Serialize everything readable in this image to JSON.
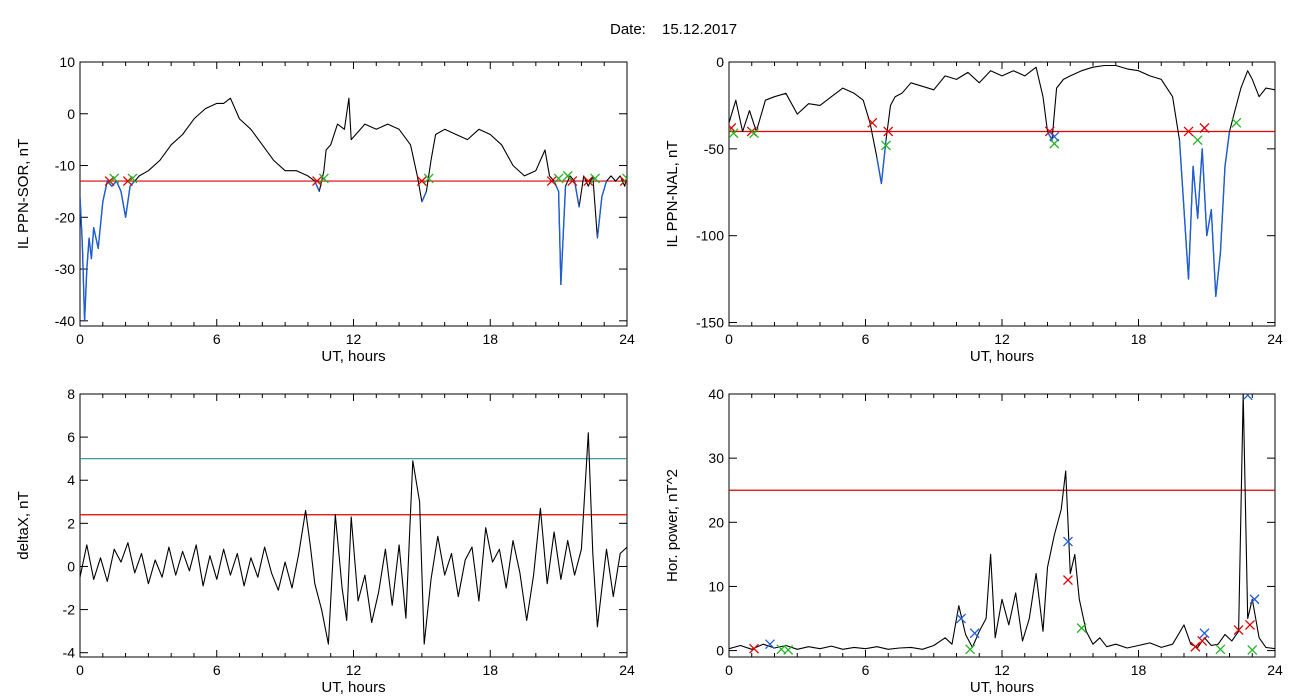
{
  "header": {
    "date_label": "Date:",
    "date_value": "15.12.2017"
  },
  "colors": {
    "series": "#000000",
    "segment": "#1f5fd6",
    "threshold": "#e00000",
    "threshold2": "#20909a",
    "marker_red": "#e00000",
    "marker_green": "#22b522",
    "marker_blue": "#1f5fd6"
  },
  "chart_data": [
    {
      "id": "p1",
      "type": "line",
      "xlabel": "UT, hours",
      "ylabel": "IL PPN-SOR, nT",
      "xlim": [
        0,
        24
      ],
      "ylim": [
        -41,
        10
      ],
      "xticks": [
        0,
        6,
        12,
        18,
        24
      ],
      "yticks": [
        10,
        0,
        -10,
        -20,
        -30,
        -40
      ],
      "hlines": [
        {
          "y": -13,
          "color": "threshold"
        }
      ],
      "series": [
        {
          "x": [
            0,
            0.1,
            0.2,
            0.3,
            0.4,
            0.5,
            0.6,
            0.8,
            1.0,
            1.2,
            1.4,
            1.6,
            1.8,
            2.0,
            2.2,
            2.4,
            2.6,
            3.0,
            3.5,
            4.0,
            4.5,
            5.0,
            5.5,
            6.0,
            6.3,
            6.6,
            6.8,
            7.0,
            7.5,
            8.0,
            8.5,
            9.0,
            9.5,
            10.0,
            10.3,
            10.5,
            10.7,
            10.8,
            11.0,
            11.3,
            11.6,
            11.8,
            11.9,
            12.1,
            12.5,
            13.0,
            13.5,
            14.0,
            14.5,
            14.8,
            15.0,
            15.2,
            15.4,
            15.6,
            16.0,
            16.5,
            17.0,
            17.5,
            18.0,
            18.5,
            19.0,
            19.5,
            20.0,
            20.4,
            20.6,
            20.8,
            21.0,
            21.1,
            21.3,
            21.5,
            21.7,
            21.9,
            22.1,
            22.3,
            22.5,
            22.7,
            22.9,
            23.1,
            23.3,
            23.5,
            23.7,
            23.9,
            24.0
          ],
          "y": [
            -16,
            -25,
            -40,
            -30,
            -24,
            -28,
            -22,
            -26,
            -17,
            -13,
            -14,
            -13,
            -15,
            -20,
            -14,
            -13,
            -12,
            -11,
            -9,
            -6,
            -4,
            -1,
            1,
            2,
            2,
            3,
            1,
            -1,
            -3,
            -6,
            -9,
            -11,
            -11,
            -12,
            -13,
            -15,
            -11,
            -7,
            -6,
            -2,
            -3,
            3,
            -5,
            -4,
            -2,
            -3,
            -2,
            -3,
            -6,
            -12,
            -17,
            -15,
            -9,
            -4,
            -3,
            -4,
            -5,
            -3,
            -4,
            -6,
            -10,
            -12,
            -11,
            -7,
            -12,
            -13,
            -15,
            -33,
            -14,
            -12,
            -13,
            -18,
            -12,
            -14,
            -12,
            -24,
            -16,
            -13,
            -12,
            -13,
            -12,
            -14,
            -12
          ],
          "color": "series"
        }
      ],
      "markers": [
        {
          "x": 1.3,
          "y": -13,
          "color": "marker_red"
        },
        {
          "x": 1.5,
          "y": -12.5,
          "color": "marker_green"
        },
        {
          "x": 2.1,
          "y": -13,
          "color": "marker_red"
        },
        {
          "x": 2.3,
          "y": -12.5,
          "color": "marker_green"
        },
        {
          "x": 10.4,
          "y": -13,
          "color": "marker_red"
        },
        {
          "x": 10.7,
          "y": -12.5,
          "color": "marker_green"
        },
        {
          "x": 15.0,
          "y": -13,
          "color": "marker_red"
        },
        {
          "x": 15.3,
          "y": -12.5,
          "color": "marker_green"
        },
        {
          "x": 20.7,
          "y": -13,
          "color": "marker_red"
        },
        {
          "x": 21.0,
          "y": -12.5,
          "color": "marker_green"
        },
        {
          "x": 21.6,
          "y": -13,
          "color": "marker_red"
        },
        {
          "x": 21.4,
          "y": -12,
          "color": "marker_green"
        },
        {
          "x": 22.3,
          "y": -13,
          "color": "marker_red"
        },
        {
          "x": 22.6,
          "y": -12.5,
          "color": "marker_green"
        },
        {
          "x": 23.9,
          "y": -13,
          "color": "marker_red"
        },
        {
          "x": 24.0,
          "y": -12.5,
          "color": "marker_green"
        }
      ]
    },
    {
      "id": "p2",
      "type": "line",
      "xlabel": "UT, hours",
      "ylabel": "IL PPN-NAL, nT",
      "xlim": [
        0,
        24
      ],
      "ylim": [
        -152,
        0
      ],
      "xticks": [
        0,
        6,
        12,
        18,
        24
      ],
      "yticks": [
        0,
        -50,
        -100,
        -150
      ],
      "hlines": [
        {
          "y": -40,
          "color": "threshold"
        }
      ],
      "series": [
        {
          "x": [
            0,
            0.3,
            0.6,
            0.9,
            1.2,
            1.6,
            2.0,
            2.5,
            3.0,
            3.5,
            4.0,
            4.5,
            5.0,
            5.5,
            5.9,
            6.2,
            6.5,
            6.7,
            6.9,
            7.1,
            7.3,
            7.6,
            8.0,
            8.5,
            9.0,
            9.5,
            10.0,
            10.5,
            11.0,
            11.5,
            12.0,
            12.5,
            13.0,
            13.5,
            13.8,
            14.0,
            14.2,
            14.4,
            14.7,
            15.0,
            15.5,
            16.0,
            16.5,
            17.0,
            17.5,
            18.0,
            18.5,
            19.0,
            19.5,
            19.8,
            20.0,
            20.2,
            20.4,
            20.6,
            20.8,
            21.0,
            21.2,
            21.4,
            21.6,
            21.8,
            22.0,
            22.2,
            22.5,
            22.8,
            23.0,
            23.3,
            23.6,
            24.0
          ],
          "y": [
            -35,
            -22,
            -40,
            -28,
            -40,
            -22,
            -20,
            -18,
            -30,
            -24,
            -25,
            -20,
            -15,
            -18,
            -22,
            -35,
            -55,
            -70,
            -45,
            -25,
            -20,
            -18,
            -12,
            -14,
            -16,
            -8,
            -10,
            -6,
            -12,
            -5,
            -8,
            -5,
            -8,
            -3,
            -20,
            -40,
            -45,
            -15,
            -10,
            -8,
            -5,
            -3,
            -2,
            -2,
            -4,
            -5,
            -8,
            -10,
            -20,
            -45,
            -85,
            -125,
            -60,
            -90,
            -50,
            -100,
            -85,
            -135,
            -110,
            -60,
            -40,
            -30,
            -15,
            -5,
            -10,
            -20,
            -15,
            -16
          ],
          "color": "series"
        }
      ],
      "markers": [
        {
          "x": 0.1,
          "y": -38,
          "color": "marker_red"
        },
        {
          "x": 0.2,
          "y": -41,
          "color": "marker_green"
        },
        {
          "x": 1.0,
          "y": -40,
          "color": "marker_red"
        },
        {
          "x": 1.1,
          "y": -41,
          "color": "marker_green"
        },
        {
          "x": 6.3,
          "y": -35,
          "color": "marker_red"
        },
        {
          "x": 6.9,
          "y": -48,
          "color": "marker_green"
        },
        {
          "x": 7.0,
          "y": -40,
          "color": "marker_red"
        },
        {
          "x": 14.1,
          "y": -40,
          "color": "marker_red"
        },
        {
          "x": 14.3,
          "y": -47,
          "color": "marker_green"
        },
        {
          "x": 14.3,
          "y": -43,
          "color": "marker_blue"
        },
        {
          "x": 20.2,
          "y": -40,
          "color": "marker_red"
        },
        {
          "x": 20.6,
          "y": -45,
          "color": "marker_green"
        },
        {
          "x": 20.9,
          "y": -38,
          "color": "marker_red"
        },
        {
          "x": 22.3,
          "y": -35,
          "color": "marker_green"
        }
      ]
    },
    {
      "id": "p3",
      "type": "line",
      "xlabel": "UT, hours",
      "ylabel": "deltaX, nT",
      "xlim": [
        0,
        24
      ],
      "ylim": [
        -4.2,
        8
      ],
      "xticks": [
        0,
        6,
        12,
        18,
        24
      ],
      "yticks": [
        8,
        6,
        4,
        2,
        0,
        -2,
        -4
      ],
      "hlines": [
        {
          "y": 2.4,
          "color": "threshold"
        },
        {
          "y": 5.0,
          "color": "threshold2"
        }
      ],
      "series": [
        {
          "x": [
            0,
            0.3,
            0.6,
            0.9,
            1.2,
            1.5,
            1.8,
            2.1,
            2.4,
            2.7,
            3.0,
            3.3,
            3.6,
            3.9,
            4.2,
            4.5,
            4.8,
            5.1,
            5.4,
            5.7,
            6.0,
            6.3,
            6.6,
            6.9,
            7.2,
            7.5,
            7.8,
            8.1,
            8.4,
            8.7,
            9.0,
            9.3,
            9.6,
            9.9,
            10.1,
            10.3,
            10.6,
            10.9,
            11.2,
            11.5,
            11.7,
            11.9,
            12.2,
            12.5,
            12.8,
            13.1,
            13.4,
            13.7,
            14.0,
            14.3,
            14.6,
            14.9,
            15.1,
            15.4,
            15.7,
            16.0,
            16.3,
            16.6,
            16.9,
            17.2,
            17.5,
            17.8,
            18.1,
            18.4,
            18.7,
            19.0,
            19.3,
            19.6,
            19.9,
            20.2,
            20.5,
            20.8,
            21.1,
            21.4,
            21.7,
            22.0,
            22.3,
            22.5,
            22.7,
            22.9,
            23.1,
            23.4,
            23.7,
            24.0
          ],
          "y": [
            -0.5,
            1.0,
            -0.6,
            0.4,
            -0.7,
            0.8,
            0.2,
            1.1,
            -0.3,
            0.6,
            -0.8,
            0.3,
            -0.5,
            0.9,
            -0.4,
            0.7,
            -0.2,
            1.0,
            -0.9,
            0.5,
            -0.6,
            0.8,
            -0.4,
            0.6,
            -0.9,
            0.4,
            -0.5,
            0.9,
            -0.3,
            -1.1,
            0.2,
            -1.0,
            0.6,
            2.6,
            1.0,
            -0.8,
            -2.0,
            -3.6,
            2.4,
            -1.0,
            -2.5,
            2.3,
            -1.6,
            -0.4,
            -2.6,
            -1.2,
            0.8,
            -1.8,
            1.0,
            -2.4,
            4.9,
            3.0,
            -3.6,
            -0.6,
            1.4,
            -0.4,
            0.6,
            -1.4,
            0.3,
            0.9,
            -1.6,
            1.8,
            0.2,
            0.8,
            -1.0,
            1.2,
            -0.3,
            -2.5,
            -0.4,
            2.7,
            -0.8,
            1.6,
            -0.6,
            1.2,
            -0.4,
            0.8,
            6.2,
            0.6,
            -2.8,
            -1.0,
            0.8,
            -1.4,
            0.6,
            0.9
          ],
          "color": "series"
        }
      ],
      "markers": []
    },
    {
      "id": "p4",
      "type": "line",
      "xlabel": "UT, hours",
      "ylabel": "Hor. power, nT^2",
      "xlim": [
        0,
        24
      ],
      "ylim": [
        -1,
        40
      ],
      "xticks": [
        0,
        6,
        12,
        18,
        24
      ],
      "yticks": [
        40,
        30,
        20,
        10,
        0
      ],
      "hlines": [
        {
          "y": 25,
          "color": "threshold"
        }
      ],
      "series": [
        {
          "x": [
            0,
            0.5,
            1.0,
            1.5,
            2.0,
            2.5,
            3.0,
            3.5,
            4.0,
            4.5,
            5.0,
            5.5,
            6.0,
            6.5,
            7.0,
            7.5,
            8.0,
            8.5,
            9.0,
            9.5,
            9.8,
            10.1,
            10.4,
            10.7,
            11.0,
            11.3,
            11.5,
            11.7,
            12.0,
            12.3,
            12.6,
            12.9,
            13.2,
            13.5,
            13.8,
            14.0,
            14.3,
            14.6,
            14.8,
            15.0,
            15.2,
            15.4,
            15.7,
            16.0,
            16.3,
            16.6,
            17.0,
            17.5,
            18.0,
            18.5,
            19.0,
            19.5,
            20.0,
            20.3,
            20.6,
            20.9,
            21.2,
            21.5,
            21.8,
            22.1,
            22.4,
            22.6,
            22.8,
            23.0,
            23.3,
            23.6,
            24.0
          ],
          "y": [
            0.3,
            0.8,
            0.2,
            1.0,
            0.4,
            0.8,
            0.2,
            0.6,
            0.3,
            0.7,
            0.2,
            0.5,
            0.3,
            0.6,
            0.2,
            0.4,
            0.5,
            0.2,
            0.8,
            2.0,
            1.0,
            7.0,
            2.5,
            0.5,
            3.0,
            5.0,
            15.0,
            2.0,
            8.0,
            4.0,
            9.0,
            1.5,
            5.0,
            12.0,
            3.0,
            13.0,
            18.0,
            22.0,
            28.0,
            12.0,
            15.0,
            8.0,
            3.0,
            1.0,
            2.0,
            0.6,
            1.0,
            0.4,
            0.8,
            1.2,
            0.5,
            1.0,
            4.0,
            1.0,
            0.5,
            2.0,
            0.8,
            1.0,
            2.5,
            1.5,
            3.0,
            40.0,
            5.0,
            8.0,
            2.0,
            0.5,
            0.3
          ],
          "color": "series"
        }
      ],
      "markers": [
        {
          "x": 1.1,
          "y": 0.3,
          "color": "marker_red"
        },
        {
          "x": 1.8,
          "y": 1.0,
          "color": "marker_blue"
        },
        {
          "x": 2.3,
          "y": 0.2,
          "color": "marker_green"
        },
        {
          "x": 2.6,
          "y": 0.1,
          "color": "marker_green"
        },
        {
          "x": 10.2,
          "y": 5.0,
          "color": "marker_blue"
        },
        {
          "x": 10.6,
          "y": 0.2,
          "color": "marker_green"
        },
        {
          "x": 10.8,
          "y": 2.7,
          "color": "marker_blue"
        },
        {
          "x": 14.9,
          "y": 17.0,
          "color": "marker_blue"
        },
        {
          "x": 14.9,
          "y": 11.0,
          "color": "marker_red"
        },
        {
          "x": 15.5,
          "y": 3.5,
          "color": "marker_green"
        },
        {
          "x": 20.5,
          "y": 0.6,
          "color": "marker_red"
        },
        {
          "x": 20.8,
          "y": 1.5,
          "color": "marker_red"
        },
        {
          "x": 20.9,
          "y": 2.7,
          "color": "marker_blue"
        },
        {
          "x": 21.6,
          "y": 0.2,
          "color": "marker_green"
        },
        {
          "x": 22.4,
          "y": 3.2,
          "color": "marker_red"
        },
        {
          "x": 22.8,
          "y": 39.8,
          "color": "marker_blue"
        },
        {
          "x": 22.9,
          "y": 4.0,
          "color": "marker_red"
        },
        {
          "x": 23.1,
          "y": 8.0,
          "color": "marker_blue"
        },
        {
          "x": 23.0,
          "y": 0.1,
          "color": "marker_green"
        }
      ]
    }
  ]
}
